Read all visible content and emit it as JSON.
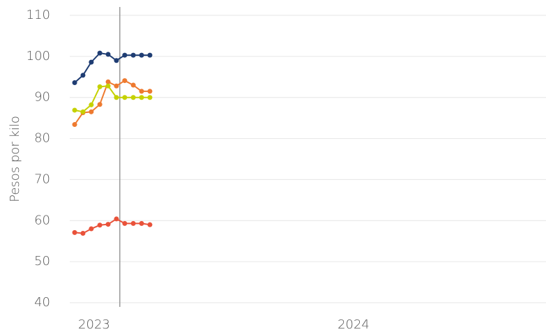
{
  "chart_data": {
    "type": "line",
    "y_label": "Pesos por kilo",
    "x": [
      2022.925,
      2022.957,
      2022.989,
      2023.022,
      2023.054,
      2023.086,
      2023.118,
      2023.151,
      2023.183,
      2023.215
    ],
    "series": [
      {
        "color": "#1f3d73",
        "values": [
          93.6,
          95.4,
          98.6,
          100.8,
          100.5,
          99.0,
          100.3,
          100.3,
          100.3,
          100.3
        ]
      },
      {
        "color": "#ee7a30",
        "values": [
          83.4,
          86.3,
          86.5,
          88.3,
          93.8,
          92.8,
          94.1,
          93.0,
          91.5,
          91.5
        ]
      },
      {
        "color": "#c5d100",
        "values": [
          86.9,
          86.5,
          88.2,
          92.6,
          92.8,
          90.0,
          90.0,
          90.0,
          90.0,
          90.0
        ]
      },
      {
        "color": "#e9523a",
        "values": [
          57.1,
          56.9,
          58.0,
          58.9,
          59.1,
          60.4,
          59.3,
          59.3,
          59.3,
          59.0
        ]
      }
    ],
    "xlim": [
      2022.906,
      2024.742
    ],
    "xticks": [
      2023,
      2024
    ],
    "ylim": [
      40,
      110
    ],
    "yticks": [
      40,
      50,
      60,
      70,
      80,
      90,
      100,
      110
    ],
    "vline": 2023.099,
    "grid": true
  }
}
